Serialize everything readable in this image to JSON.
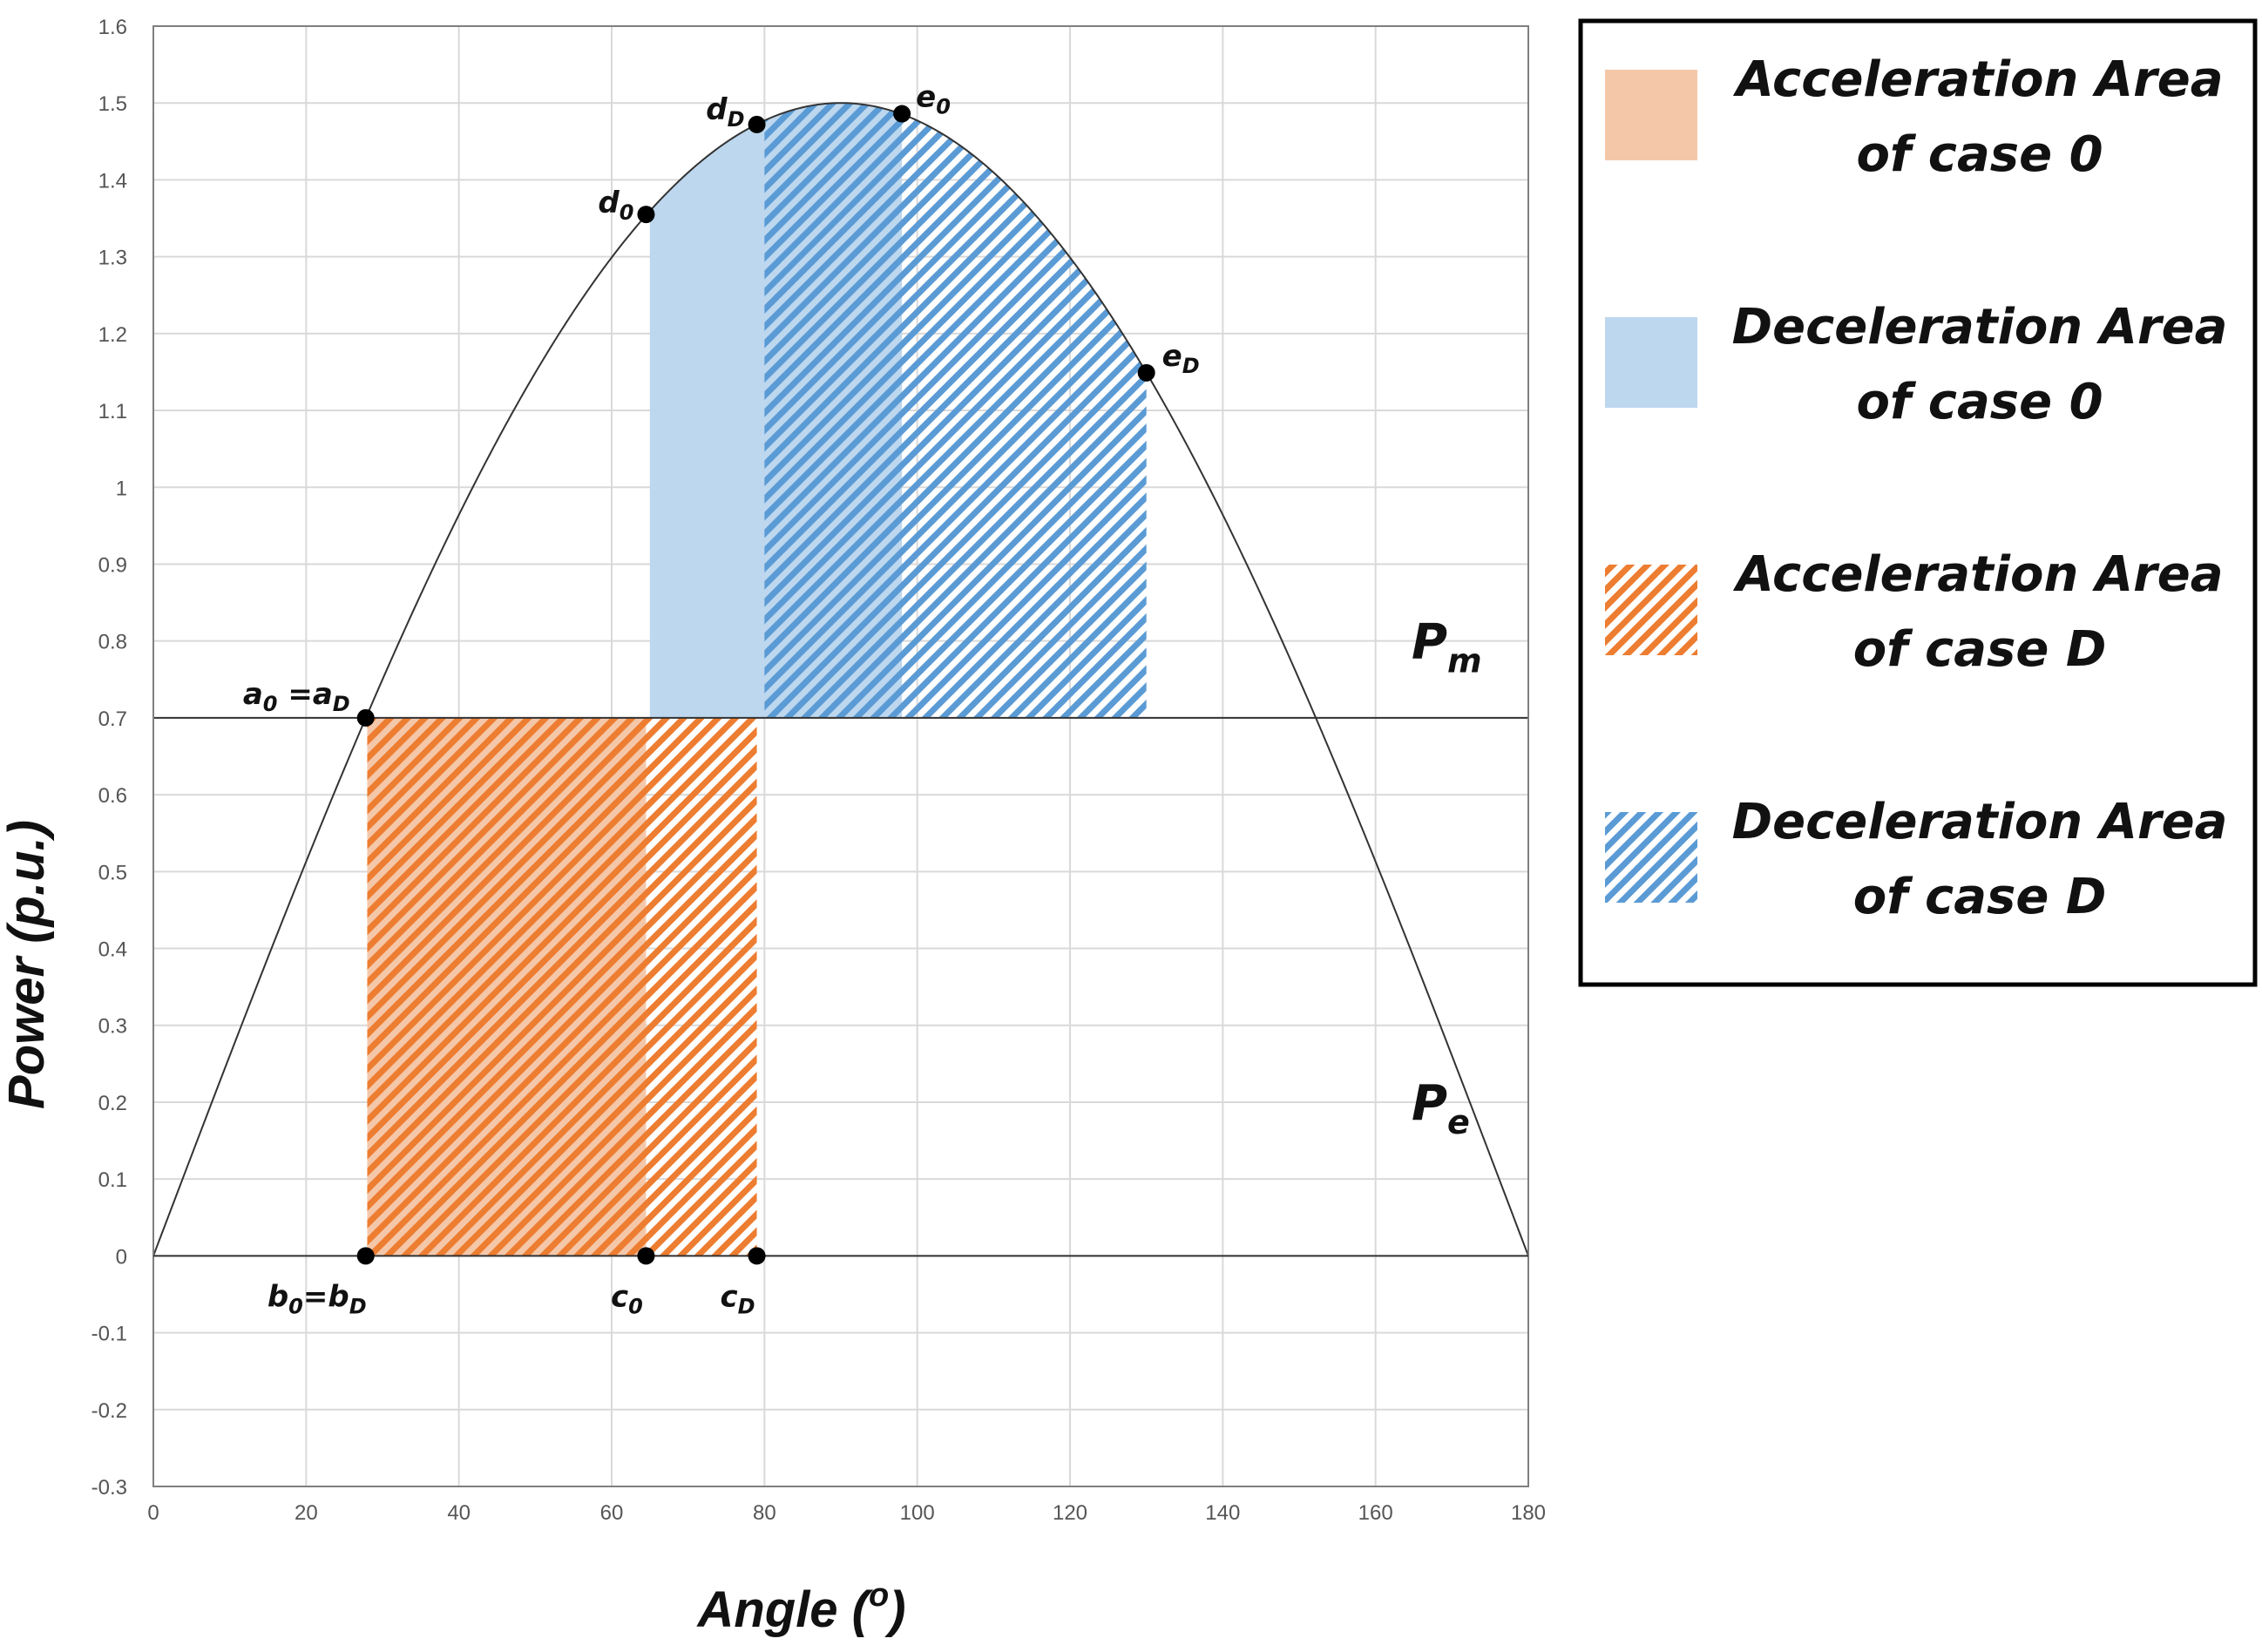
{
  "chart_data": {
    "type": "area",
    "title": "",
    "xlabel": "Angle (",
    "xlabel_sup": "o",
    "xlabel_close": ")",
    "ylabel": "Power (p.u.)",
    "xlim": [
      0,
      180
    ],
    "ylim": [
      -0.3,
      1.6
    ],
    "xticks": [
      0,
      20,
      40,
      60,
      80,
      100,
      120,
      140,
      160,
      180
    ],
    "yticks": [
      -0.3,
      -0.2,
      -0.1,
      0,
      0.1,
      0.2,
      0.3,
      0.4,
      0.5,
      0.6,
      0.7,
      0.8,
      0.9,
      1,
      1.1,
      1.2,
      1.3,
      1.4,
      1.5,
      1.6
    ],
    "grid": true,
    "curves": {
      "pe": {
        "base": "P",
        "sub": "e",
        "amplitude": 1.5,
        "description": "1.5·sin(angle)"
      },
      "pm": {
        "base": "P",
        "sub": "m",
        "value": 0.7
      }
    },
    "areas": [
      {
        "name": "Acceleration Area of case 0",
        "x_start": 28,
        "x_end": 64.5,
        "y_low": 0,
        "y_high": 0.7,
        "style": "solid",
        "color": "#f5c7a9"
      },
      {
        "name": "Acceleration Area of case D",
        "x_start": 28,
        "x_end": 79,
        "y_low": 0,
        "y_high": 0.7,
        "style": "hatch",
        "color": "#ed7d31"
      },
      {
        "name": "Deceleration Area of case 0",
        "x_start": 65,
        "x_end": 98,
        "y_low": 0.7,
        "y_high": "curve",
        "style": "solid",
        "color": "#bdd7ee"
      },
      {
        "name": "Deceleration Area of case D",
        "x_start": 80,
        "x_end": 130,
        "y_low": 0.7,
        "y_high": "curve",
        "style": "hatch",
        "color": "#5b9bd5"
      }
    ],
    "points": [
      {
        "id": "a",
        "x": 27.8,
        "y": 0.7,
        "label_parts": [
          {
            "t": "a"
          },
          {
            "t": "0",
            "sub": true
          },
          {
            "t": " =a"
          },
          {
            "t": "D",
            "sub": true
          }
        ],
        "anchor": "end",
        "dx": -18,
        "dy": -16
      },
      {
        "id": "b",
        "x": 27.8,
        "y": 0,
        "label_parts": [
          {
            "t": "b"
          },
          {
            "t": "0",
            "sub": true
          },
          {
            "t": "=b"
          },
          {
            "t": "D",
            "sub": true
          }
        ],
        "anchor": "middle",
        "dx": -56,
        "dy": 58
      },
      {
        "id": "c0",
        "x": 64.5,
        "y": 0,
        "label_parts": [
          {
            "t": "c"
          },
          {
            "t": "0",
            "sub": true
          }
        ],
        "anchor": "middle",
        "dx": -22,
        "dy": 58
      },
      {
        "id": "cD",
        "x": 79,
        "y": 0,
        "label_parts": [
          {
            "t": "c"
          },
          {
            "t": "D",
            "sub": true
          }
        ],
        "anchor": "middle",
        "dx": -22,
        "dy": 58
      },
      {
        "id": "d0",
        "x": 64.5,
        "y": 1.355,
        "label_parts": [
          {
            "t": "d"
          },
          {
            "t": "0",
            "sub": true
          }
        ],
        "anchor": "end",
        "dx": -14,
        "dy": -2
      },
      {
        "id": "dD",
        "x": 79,
        "y": 1.472,
        "label_parts": [
          {
            "t": "d"
          },
          {
            "t": "D",
            "sub": true
          }
        ],
        "anchor": "end",
        "dx": -14,
        "dy": -6
      },
      {
        "id": "e0",
        "x": 98,
        "y": 1.486,
        "label_parts": [
          {
            "t": "e"
          },
          {
            "t": "0",
            "sub": true
          }
        ],
        "anchor": "start",
        "dx": 16,
        "dy": -8
      },
      {
        "id": "eD",
        "x": 130,
        "y": 1.149,
        "label_parts": [
          {
            "t": "e"
          },
          {
            "t": "D",
            "sub": true
          }
        ],
        "anchor": "start",
        "dx": 18,
        "dy": -8
      }
    ],
    "legend": {
      "position": "right",
      "items": [
        {
          "line1": "Acceleration Area",
          "line2": "of case 0",
          "style": "solid",
          "color": "#f5c7a9"
        },
        {
          "line1": "Deceleration Area",
          "line2": "of case 0",
          "style": "solid",
          "color": "#bdd7ee"
        },
        {
          "line1": "Acceleration Area",
          "line2": "of case D",
          "style": "hatch",
          "color": "#ed7d31"
        },
        {
          "line1": "Deceleration Area",
          "line2": "of case D",
          "style": "hatch",
          "color": "#5b9bd5"
        }
      ]
    }
  }
}
